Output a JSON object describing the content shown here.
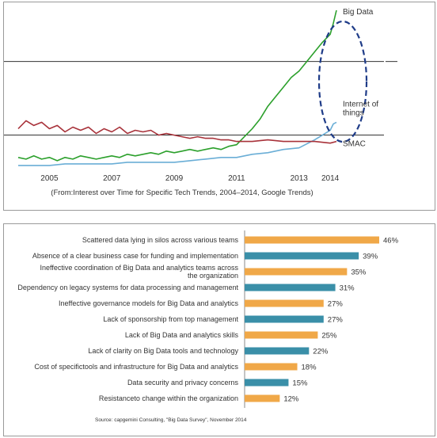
{
  "chart_data": [
    {
      "type": "line",
      "title": "",
      "caption": "(From:Interest over Time for Specific Tech Trends, 2004–2014, Google Trends)",
      "x_tick_labels": [
        "2005",
        "2007",
        "2009",
        "2011",
        "2013",
        "2014"
      ],
      "x_ticks": [
        2005,
        2007,
        2009,
        2011,
        2013,
        2014
      ],
      "xlim": [
        2004,
        2014.2
      ],
      "ylim": [
        0,
        100
      ],
      "grid": false,
      "reference_lines_y": [
        68,
        22
      ],
      "series": [
        {
          "name": "Big Data",
          "color": "#2ca02c",
          "points": [
            [
              2004,
              8
            ],
            [
              2004.25,
              7
            ],
            [
              2004.5,
              9
            ],
            [
              2004.75,
              7
            ],
            [
              2005,
              8
            ],
            [
              2005.25,
              6
            ],
            [
              2005.5,
              8
            ],
            [
              2005.75,
              7
            ],
            [
              2006,
              9
            ],
            [
              2006.25,
              8
            ],
            [
              2006.5,
              7
            ],
            [
              2006.75,
              8
            ],
            [
              2007,
              9
            ],
            [
              2007.25,
              8
            ],
            [
              2007.5,
              10
            ],
            [
              2007.75,
              9
            ],
            [
              2008,
              10
            ],
            [
              2008.25,
              11
            ],
            [
              2008.5,
              10
            ],
            [
              2008.75,
              12
            ],
            [
              2009,
              11
            ],
            [
              2009.25,
              12
            ],
            [
              2009.5,
              13
            ],
            [
              2009.75,
              12
            ],
            [
              2010,
              13
            ],
            [
              2010.25,
              14
            ],
            [
              2010.5,
              13
            ],
            [
              2010.75,
              15
            ],
            [
              2011,
              16
            ],
            [
              2011.25,
              21
            ],
            [
              2011.5,
              26
            ],
            [
              2011.75,
              32
            ],
            [
              2012,
              40
            ],
            [
              2012.25,
              46
            ],
            [
              2012.5,
              52
            ],
            [
              2012.75,
              58
            ],
            [
              2013,
              62
            ],
            [
              2013.25,
              68
            ],
            [
              2013.5,
              74
            ],
            [
              2013.75,
              80
            ],
            [
              2014,
              85
            ],
            [
              2014.1,
              92
            ],
            [
              2014.2,
              100
            ]
          ]
        },
        {
          "name": "Internet of things",
          "color": "#6aaed6",
          "points": [
            [
              2004,
              3
            ],
            [
              2004.5,
              3
            ],
            [
              2005,
              3
            ],
            [
              2005.5,
              4
            ],
            [
              2006,
              4
            ],
            [
              2006.5,
              4
            ],
            [
              2007,
              4
            ],
            [
              2007.5,
              5
            ],
            [
              2008,
              5
            ],
            [
              2008.5,
              5
            ],
            [
              2009,
              5
            ],
            [
              2009.5,
              6
            ],
            [
              2010,
              7
            ],
            [
              2010.5,
              8
            ],
            [
              2011,
              8
            ],
            [
              2011.5,
              10
            ],
            [
              2012,
              11
            ],
            [
              2012.5,
              13
            ],
            [
              2013,
              14
            ],
            [
              2013.5,
              19
            ],
            [
              2013.75,
              22
            ],
            [
              2014,
              25
            ],
            [
              2014.1,
              29
            ],
            [
              2014.2,
              30
            ]
          ]
        },
        {
          "name": "SMAC",
          "color": "#a8323a",
          "points": [
            [
              2004,
              26
            ],
            [
              2004.25,
              31
            ],
            [
              2004.5,
              28
            ],
            [
              2004.75,
              30
            ],
            [
              2005,
              26
            ],
            [
              2005.25,
              28
            ],
            [
              2005.5,
              24
            ],
            [
              2005.75,
              27
            ],
            [
              2006,
              25
            ],
            [
              2006.25,
              27
            ],
            [
              2006.5,
              23
            ],
            [
              2006.75,
              26
            ],
            [
              2007,
              24
            ],
            [
              2007.25,
              27
            ],
            [
              2007.5,
              23
            ],
            [
              2007.75,
              25
            ],
            [
              2008,
              24
            ],
            [
              2008.25,
              25
            ],
            [
              2008.5,
              22
            ],
            [
              2008.75,
              23
            ],
            [
              2009,
              22
            ],
            [
              2009.25,
              21
            ],
            [
              2009.5,
              20
            ],
            [
              2009.75,
              21
            ],
            [
              2010,
              20
            ],
            [
              2010.25,
              20
            ],
            [
              2010.5,
              19
            ],
            [
              2010.75,
              19
            ],
            [
              2011,
              18
            ],
            [
              2011.5,
              18
            ],
            [
              2012,
              19
            ],
            [
              2012.5,
              18
            ],
            [
              2013,
              18
            ],
            [
              2013.5,
              18
            ],
            [
              2014,
              17
            ],
            [
              2014.2,
              18
            ]
          ]
        }
      ],
      "series_labels": [
        "Big Data",
        "Internet of things",
        "SMAC"
      ],
      "annotation": "dashed ellipse around 2013-2014 region",
      "annotation_color": "#1f3c88"
    },
    {
      "type": "bar",
      "orientation": "horizontal",
      "categories": [
        "Scattered data lying in silos across various teams",
        "Absence of a clear business case for funding and implementation",
        "Ineffective coordination of Big Data and analytics teams across the organization",
        "Dependency on legacy systems for data processing and management",
        "Ineffective governance models for Big Data and analytics",
        "Lack of sponsorship from top management",
        "Lack of Big Data and analytics skills",
        "Lack of clarity on Big Data tools and technology",
        "Cost of specifictools and infrastructure for Big Data and analytics",
        "Data security and privacy concerns",
        "Resistanceto change within the organization"
      ],
      "values": [
        46,
        39,
        35,
        31,
        27,
        27,
        25,
        22,
        18,
        15,
        12
      ],
      "value_labels": [
        "46%",
        "39%",
        "35%",
        "31%",
        "27%",
        "27%",
        "25%",
        "22%",
        "18%",
        "15%",
        "12%"
      ],
      "bar_colors": [
        "#f0a848",
        "#3a8fa8",
        "#f0a848",
        "#3a8fa8",
        "#f0a848",
        "#3a8fa8",
        "#f0a848",
        "#3a8fa8",
        "#f0a848",
        "#3a8fa8",
        "#f0a848"
      ],
      "xlim": [
        0,
        50
      ],
      "source": "Source: capgemini Consulting, \"Big Data Survey\", November 2014"
    }
  ]
}
